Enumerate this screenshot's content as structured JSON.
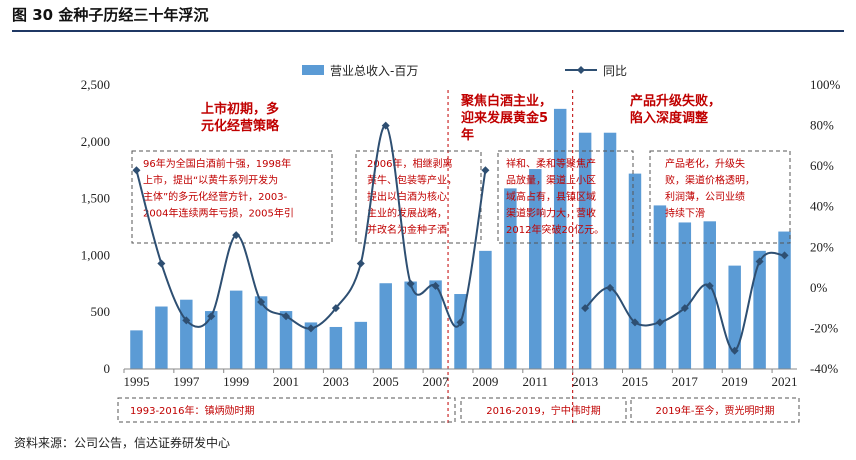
{
  "figure_title": "图 30 金种子历经三十年浮沉",
  "source": "资料来源：公司公告，信达证券研发中心",
  "colors": {
    "bar": "#5b9bd5",
    "line": "#2e4f72",
    "annotation": "#c00000",
    "title_rule": "#1f3864"
  },
  "chart_data": {
    "type": "bar",
    "title": "",
    "x": [
      1995,
      1996,
      1997,
      1998,
      1999,
      2000,
      2001,
      2002,
      2003,
      2004,
      2005,
      2006,
      2007,
      2008,
      2009,
      2010,
      2011,
      2012,
      2013,
      2014,
      2015,
      2016,
      2017,
      2018,
      2019,
      2020,
      2021
    ],
    "x_tick_labels": [
      "1995",
      "1997",
      "1999",
      "2001",
      "2003",
      "2005",
      "2007",
      "2009",
      "2011",
      "2013",
      "2015",
      "2017",
      "2019",
      "2021"
    ],
    "series": [
      {
        "name": "营业总收入-百万",
        "type": "bar",
        "axis": "left",
        "values": [
          340,
          550,
          610,
          510,
          690,
          640,
          510,
          410,
          370,
          415,
          755,
          770,
          780,
          660,
          1040,
          1590,
          1760,
          2290,
          2080,
          2080,
          1720,
          1440,
          1290,
          1300,
          910,
          1040,
          1210
        ]
      },
      {
        "name": "同比",
        "type": "line",
        "axis": "right",
        "unit": "%",
        "values": [
          58,
          12,
          -16,
          -14,
          26,
          -7,
          -14,
          -20,
          -10,
          12,
          80,
          2,
          1,
          -17,
          58,
          null,
          null,
          null,
          -10,
          0,
          -17,
          -17,
          -10,
          1,
          -31,
          13,
          16
        ]
      }
    ],
    "y_left": {
      "min": 0,
      "max": 2500,
      "ticks": [
        0,
        500,
        1000,
        1500,
        2000,
        2500
      ],
      "tick_labels": [
        "0",
        "500",
        "1,000",
        "1,500",
        "2,000",
        "2,500"
      ]
    },
    "y_right": {
      "min": -40,
      "max": 100,
      "ticks": [
        -40,
        -20,
        0,
        20,
        40,
        60,
        80,
        100
      ],
      "tick_labels": [
        "-40%",
        "-20%",
        "0%",
        "20%",
        "40%",
        "60%",
        "80%",
        "100%"
      ]
    },
    "legend_position": "top",
    "grid": false,
    "phase_dividers_at": [
      2008,
      2013
    ],
    "phase_headlines": [
      {
        "lines": [
          "上市初期，多",
          "元化经营策略"
        ],
        "year": 2000
      },
      {
        "lines": [
          "聚焦白酒主业，",
          "迎来发展黄金5",
          "年"
        ],
        "year": 2010
      },
      {
        "lines": [
          "产品升级失败，",
          "陷入深度调整"
        ],
        "year": 2017
      }
    ],
    "text_boxes": [
      {
        "lines": [
          "96年为全国白酒前十强，1998年",
          "上市，提出“以黄牛系列开发为",
          "主体”的多元化经营方针，2003-",
          "2004年连续两年亏损，2005年引"
        ]
      },
      {
        "lines": [
          "2006年，相继剥离",
          "黄牛、包装等产业，",
          "提出以白酒为核心",
          "主业的发展战略，",
          "并改名为金种子酒"
        ]
      },
      {
        "lines": [
          "祥和、柔和等聚焦产",
          "品放量，渠道上小区",
          "域高占有，县镇区域",
          "渠道影响力大，营收",
          "2012年突破20亿元。"
        ]
      },
      {
        "lines": [
          "产品老化，升级失",
          "败，渠道价格透明，",
          "利润薄，公司业绩",
          "持续下滑"
        ]
      }
    ],
    "eras": [
      {
        "label": "1993-2016年：镇炳勋时期"
      },
      {
        "label": "2016-2019，宁中伟时期"
      },
      {
        "label": "2019年-至今，贾光明时期"
      }
    ]
  }
}
